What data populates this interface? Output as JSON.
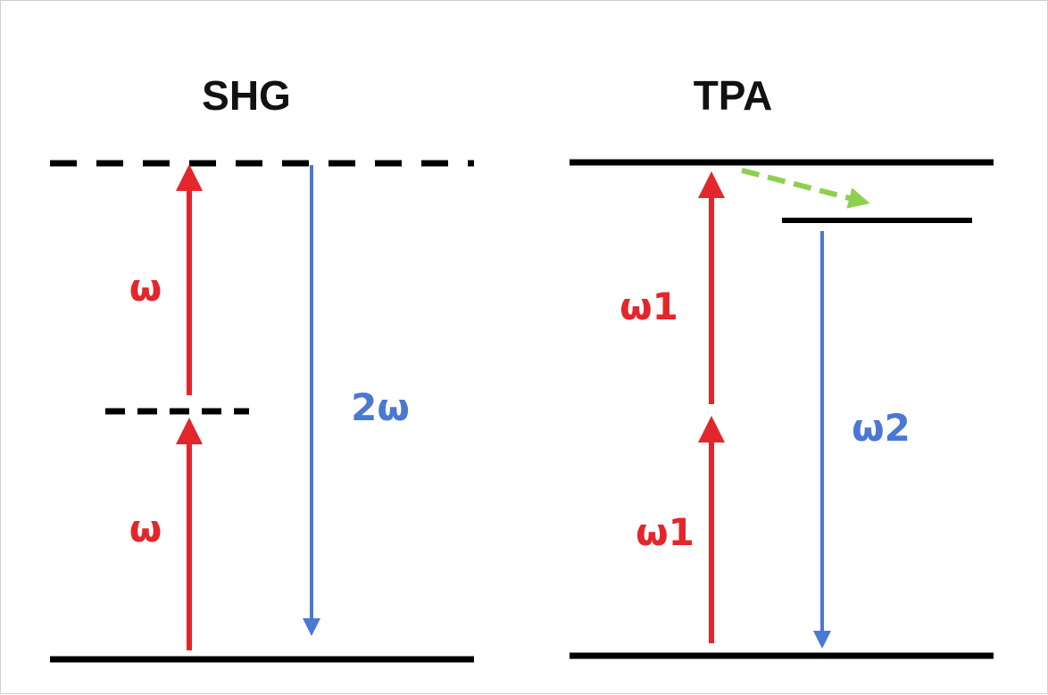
{
  "panels": {
    "shg": {
      "title": "SHG",
      "labels": {
        "lower_photon": "ω",
        "upper_photon": "ω",
        "emission": "2ω"
      }
    },
    "tpa": {
      "title": "TPA",
      "labels": {
        "lower_photon": "ω1",
        "upper_photon": "ω1",
        "emission": "ω2"
      }
    }
  },
  "colors": {
    "level": "#000000",
    "excitation": "#e3262b",
    "emission": "#4a78d3",
    "relaxation": "#8fcf4f"
  }
}
